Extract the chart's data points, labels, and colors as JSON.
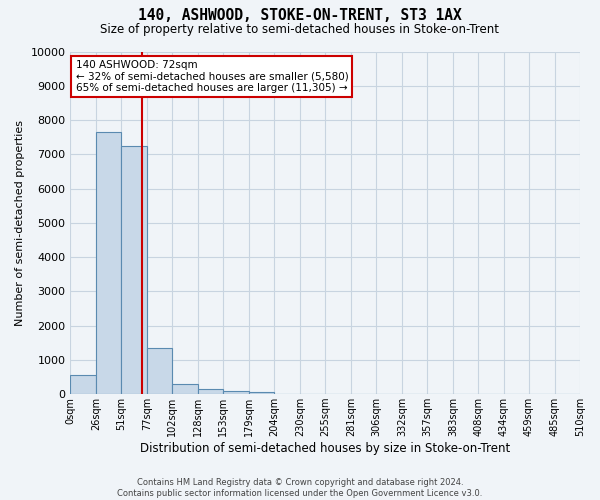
{
  "title": "140, ASHWOOD, STOKE-ON-TRENT, ST3 1AX",
  "subtitle": "Size of property relative to semi-detached houses in Stoke-on-Trent",
  "xlabel": "Distribution of semi-detached houses by size in Stoke-on-Trent",
  "ylabel": "Number of semi-detached properties",
  "footer_line1": "Contains HM Land Registry data © Crown copyright and database right 2024.",
  "footer_line2": "Contains public sector information licensed under the Open Government Licence v3.0.",
  "annotation_title": "140 ASHWOOD: 72sqm",
  "annotation_line1": "← 32% of semi-detached houses are smaller (5,580)",
  "annotation_line2": "65% of semi-detached houses are larger (11,305) →",
  "bar_edges": [
    0,
    26,
    51,
    77,
    102,
    128,
    153,
    179,
    204,
    230,
    255,
    281,
    306,
    332,
    357,
    383,
    408,
    434,
    459,
    485,
    510
  ],
  "bar_heights": [
    550,
    7650,
    7250,
    1350,
    310,
    150,
    105,
    75,
    0,
    0,
    0,
    0,
    0,
    0,
    0,
    0,
    0,
    0,
    0,
    0
  ],
  "bar_color": "#c8d8e8",
  "bar_edge_color": "#5a8ab0",
  "bar_linewidth": 0.8,
  "vline_x": 72,
  "vline_color": "#cc0000",
  "ylim": [
    0,
    10000
  ],
  "yticks": [
    0,
    1000,
    2000,
    3000,
    4000,
    5000,
    6000,
    7000,
    8000,
    9000,
    10000
  ],
  "xtick_labels": [
    "0sqm",
    "26sqm",
    "51sqm",
    "77sqm",
    "102sqm",
    "128sqm",
    "153sqm",
    "179sqm",
    "204sqm",
    "230sqm",
    "255sqm",
    "281sqm",
    "306sqm",
    "332sqm",
    "357sqm",
    "383sqm",
    "408sqm",
    "434sqm",
    "459sqm",
    "485sqm",
    "510sqm"
  ],
  "annotation_box_color": "#ffffff",
  "annotation_box_edge": "#cc0000",
  "grid_color": "#c8d4e0",
  "background_color": "#f0f4f8",
  "plot_bg_color": "#f0f4f8"
}
